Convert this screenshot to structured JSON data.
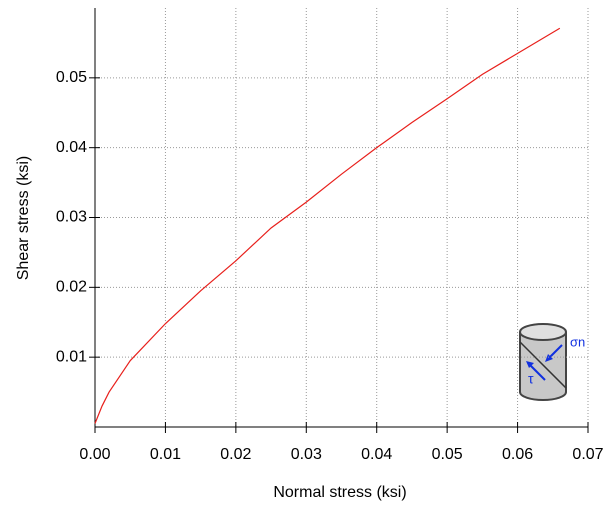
{
  "chart_data": {
    "type": "line",
    "x_label": "Normal stress (ksi)",
    "y_label": "Shear stress (ksi)",
    "x": [
      0,
      0.001,
      0.002,
      0.005,
      0.01,
      0.015,
      0.02,
      0.025,
      0.03,
      0.035,
      0.04,
      0.045,
      0.05,
      0.055,
      0.06,
      0.066
    ],
    "series": [
      {
        "color": "#e8201c",
        "values": [
          0.0005,
          0.003,
          0.005,
          0.0095,
          0.0148,
          0.0195,
          0.0238,
          0.0285,
          0.0322,
          0.0362,
          0.04,
          0.0436,
          0.047,
          0.0505,
          0.0535,
          0.0571
        ]
      }
    ],
    "xlim": [
      0,
      0.07
    ],
    "ylim": [
      0,
      0.06
    ],
    "xticks": [
      {
        "value": 0,
        "label": "0.00"
      },
      0.01,
      0.02,
      0.03,
      0.04,
      0.05,
      0.06,
      0.07
    ],
    "yticks": [
      0.01,
      0.02,
      0.03,
      0.04,
      0.05
    ],
    "grid": true,
    "icon_labels": [
      "σn",
      "τ"
    ]
  }
}
